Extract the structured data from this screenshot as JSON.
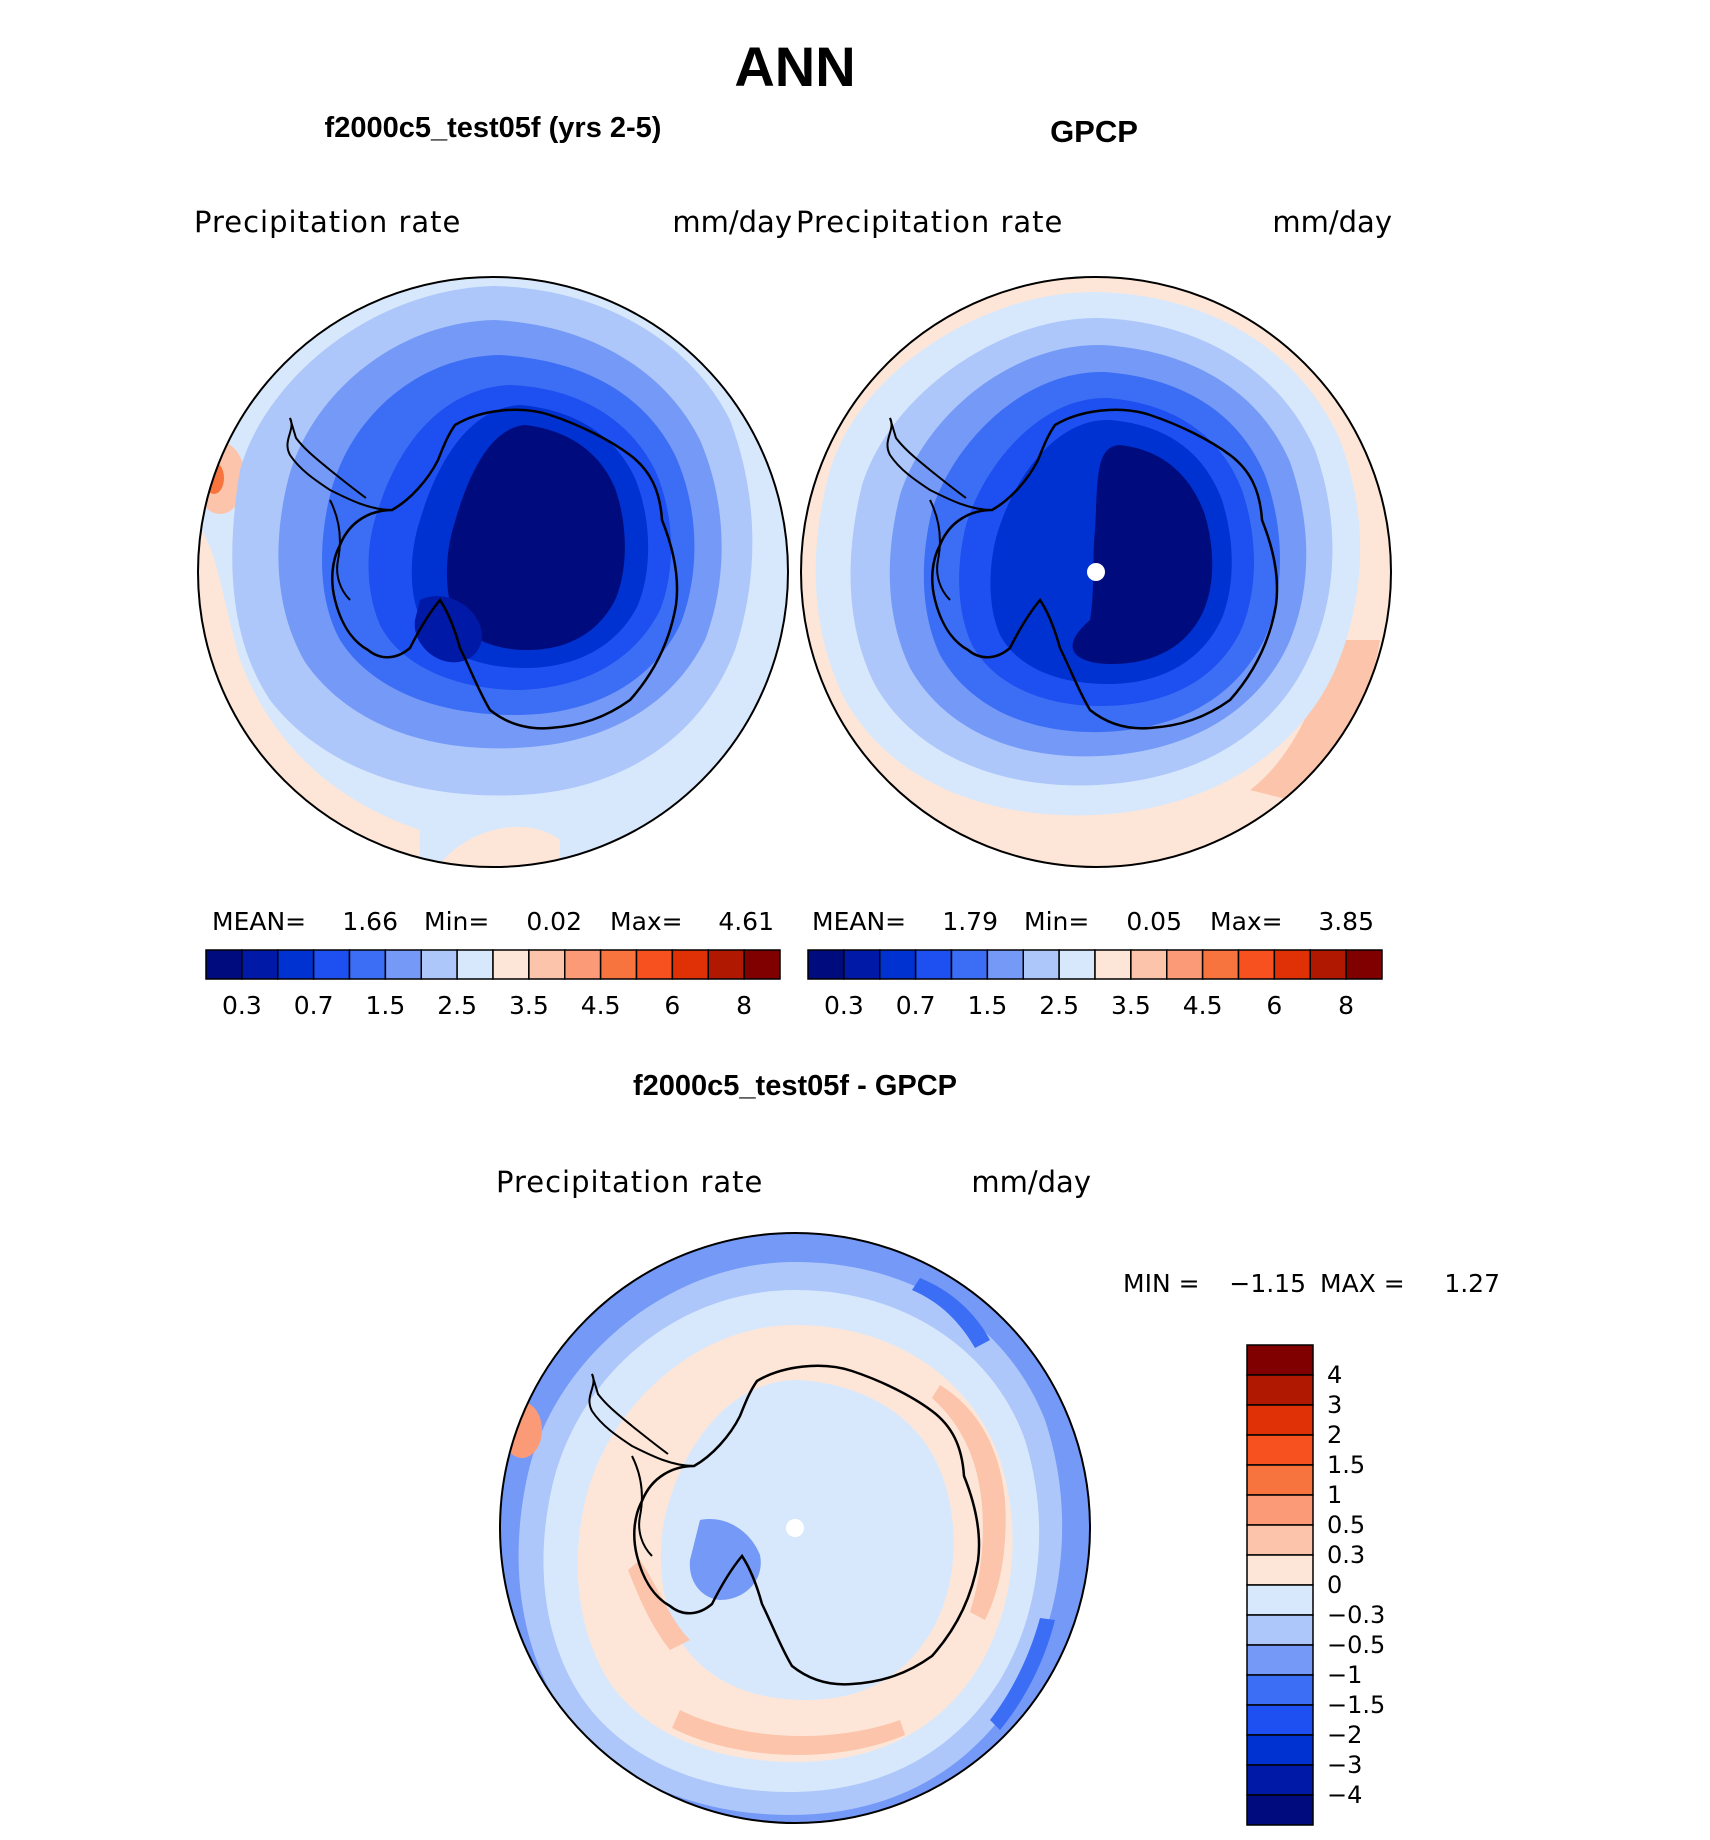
{
  "title": "ANN",
  "colors": {
    "scale16": [
      "#000c7d",
      "#0019a6",
      "#0032d2",
      "#1e4ff0",
      "#3c6ef5",
      "#7599f7",
      "#adc7fb",
      "#d8e8fc",
      "#fde6d7",
      "#fcc4ab",
      "#fb9a76",
      "#f7743e",
      "#f6511e",
      "#e03005",
      "#b01802",
      "#800000"
    ],
    "coast": "#000000",
    "land_marker": "#ffffff"
  },
  "panels": {
    "model": {
      "title": "f2000c5_test05f (yrs 2-5)",
      "variable": "Precipitation rate",
      "units": "mm/day",
      "stats": {
        "mean_label": "MEAN=",
        "mean": "1.66",
        "min_label": "Min=",
        "min": "0.02",
        "max_label": "Max=",
        "max": "4.61"
      },
      "colorbar_ticks": [
        "0.3",
        "0.7",
        "1.5",
        "2.5",
        "3.5",
        "4.5",
        "6",
        "8"
      ]
    },
    "obs": {
      "title": "GPCP",
      "variable": "Precipitation rate",
      "units": "mm/day",
      "stats": {
        "mean_label": "MEAN=",
        "mean": "1.79",
        "min_label": "Min=",
        "min": "0.05",
        "max_label": "Max=",
        "max": "3.85"
      },
      "colorbar_ticks": [
        "0.3",
        "0.7",
        "1.5",
        "2.5",
        "3.5",
        "4.5",
        "6",
        "8"
      ]
    },
    "diff": {
      "title": "f2000c5_test05f - GPCP",
      "variable": "Precipitation rate",
      "units": "mm/day",
      "stats": {
        "min_label": "MIN =",
        "min": "−1.15",
        "max_label": "MAX =",
        "max": "1.27"
      },
      "colorbar_ticks": [
        "4",
        "3",
        "2",
        "1.5",
        "1",
        "0.5",
        "0.3",
        "0",
        "−0.3",
        "−0.5",
        "−1",
        "−1.5",
        "−2",
        "−3",
        "−4"
      ]
    }
  }
}
